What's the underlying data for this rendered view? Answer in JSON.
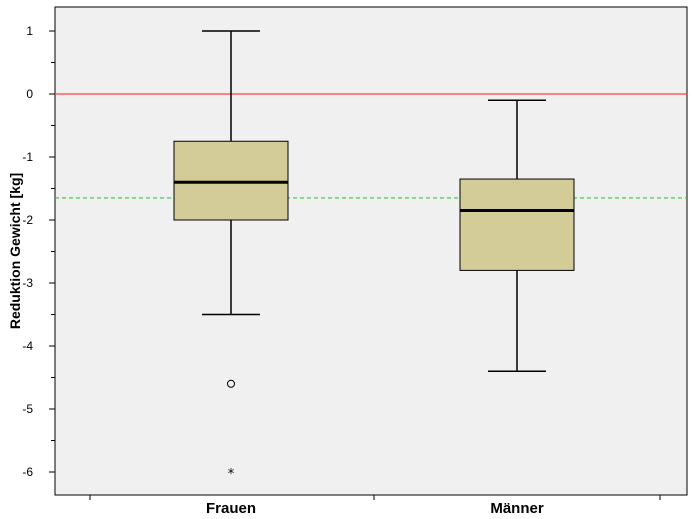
{
  "chart_data": {
    "type": "box",
    "ylabel": "Reduktion Gewicht [kg]",
    "ylim": [
      -6.4,
      1.4
    ],
    "yticks": [
      1,
      0,
      -1,
      -2,
      -3,
      -4,
      -5,
      -6
    ],
    "ytick_labels": [
      "1",
      "0",
      "-1",
      "-2",
      "-3",
      "-4",
      "-5",
      "-6"
    ],
    "categories": [
      "Frauen",
      "Männer"
    ],
    "boxes": [
      {
        "category": "Frauen",
        "whisker_low": -3.5,
        "q1": -2.0,
        "median": -1.4,
        "q3": -0.75,
        "whisker_high": 1.0,
        "outliers": [
          {
            "value": -4.6,
            "marker": "circle"
          },
          {
            "value": -6.0,
            "marker": "star"
          }
        ]
      },
      {
        "category": "Männer",
        "whisker_low": -4.4,
        "q1": -2.8,
        "median": -1.85,
        "q3": -1.35,
        "whisker_high": -0.1,
        "outliers": []
      }
    ],
    "reference_lines": [
      {
        "value": 0,
        "color": "#ff4040",
        "style": "solid"
      },
      {
        "value": -1.65,
        "color": "#33cc33",
        "style": "dashed"
      }
    ],
    "box_fill": "#d4cc98",
    "plot_background": "#f0f0f0",
    "grid": false
  }
}
